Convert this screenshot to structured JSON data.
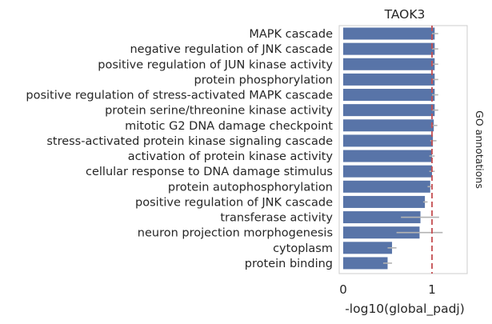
{
  "chart_data": {
    "type": "bar",
    "orientation": "horizontal",
    "title": "TAOK3",
    "xlabel": "-log10(global_padj)",
    "ylabel": "GO annotations",
    "xlim": [
      0,
      1.4
    ],
    "xticks": [
      0,
      1
    ],
    "reference_line": {
      "x": 1.0,
      "color": "#c44e52",
      "style": "dashed"
    },
    "bar_color": "#5874a8",
    "error_color": "#b3b3b3",
    "grid": false,
    "categories": [
      "MAPK cascade",
      "negative regulation of JNK cascade",
      "positive regulation of JUN kinase activity",
      "protein phosphorylation",
      "positive regulation of stress-activated MAPK cascade",
      "protein serine/threonine kinase activity",
      "mitotic G2 DNA damage checkpoint",
      "stress-activated protein kinase signaling cascade",
      "activation of protein kinase activity",
      "cellular response to DNA damage stimulus",
      "protein autophosphorylation",
      "positive regulation of JNK cascade",
      "transferase activity",
      "neuron projection morphogenesis",
      "cytoplasm",
      "protein binding"
    ],
    "values": [
      1.03,
      1.03,
      1.03,
      1.03,
      1.03,
      1.03,
      1.02,
      1.01,
      1.0,
      1.0,
      0.98,
      0.92,
      0.87,
      0.86,
      0.55,
      0.5
    ],
    "errors": [
      [
        1.0,
        1.07
      ],
      [
        1.0,
        1.07
      ],
      [
        1.0,
        1.07
      ],
      [
        1.0,
        1.07
      ],
      [
        1.0,
        1.07
      ],
      [
        1.0,
        1.07
      ],
      [
        0.99,
        1.06
      ],
      [
        0.98,
        1.05
      ],
      [
        0.97,
        1.03
      ],
      [
        0.97,
        1.03
      ],
      [
        0.95,
        1.0
      ],
      [
        0.9,
        0.95
      ],
      [
        0.65,
        1.08
      ],
      [
        0.6,
        1.12
      ],
      [
        0.5,
        0.6
      ],
      [
        0.45,
        0.55
      ]
    ]
  }
}
